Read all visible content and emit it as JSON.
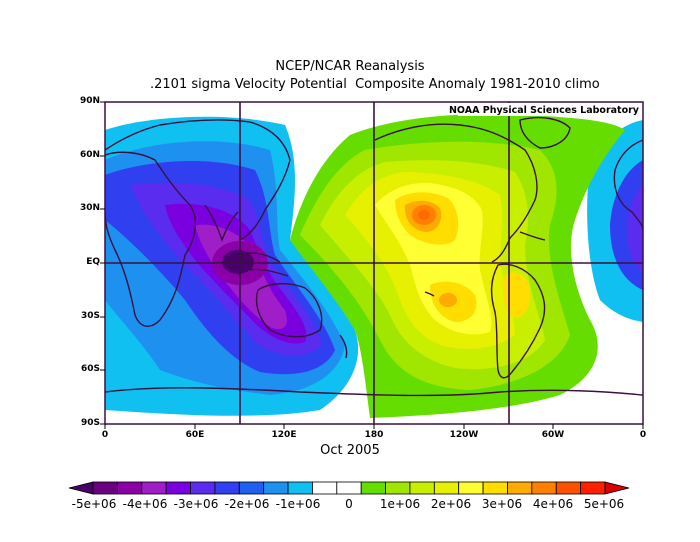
{
  "title": {
    "line1": "NCEP/NCAR Reanalysis",
    "line2": ".2101 sigma Velocity Potential  Composite Anomaly 1981-2010 climo"
  },
  "map": {
    "credit": "NOAA Physical Sciences Laboratory",
    "lat_labels": [
      "90N",
      "60N",
      "30N",
      "EQ",
      "30S",
      "60S",
      "90S"
    ],
    "lon_labels": [
      "0",
      "60E",
      "120E",
      "180",
      "120W",
      "60W",
      "0"
    ],
    "period": "Oct 2005"
  },
  "colorbar": {
    "colors": [
      "#6a0080",
      "#8b00a6",
      "#a01ec8",
      "#7a00e0",
      "#5a2cf0",
      "#3040f0",
      "#2060f0",
      "#1e90f0",
      "#10c0f0",
      "#ffffff",
      "#ffffff",
      "#66dd00",
      "#a0e600",
      "#c8ee00",
      "#e6f000",
      "#ffff33",
      "#ffdd00",
      "#ffaa00",
      "#ff8000",
      "#ff5000",
      "#ff2000"
    ],
    "labels": [
      "-5e+06",
      "-4e+06",
      "-3e+06",
      "-2e+06",
      "-1e+06",
      "0",
      "1e+06",
      "2e+06",
      "3e+06",
      "4e+06",
      "5e+06"
    ]
  },
  "colors": {
    "grid": "#3a1040",
    "coast": "#3a1040",
    "negative_core": "#4a006a",
    "positive_core": "#ff6a00"
  }
}
